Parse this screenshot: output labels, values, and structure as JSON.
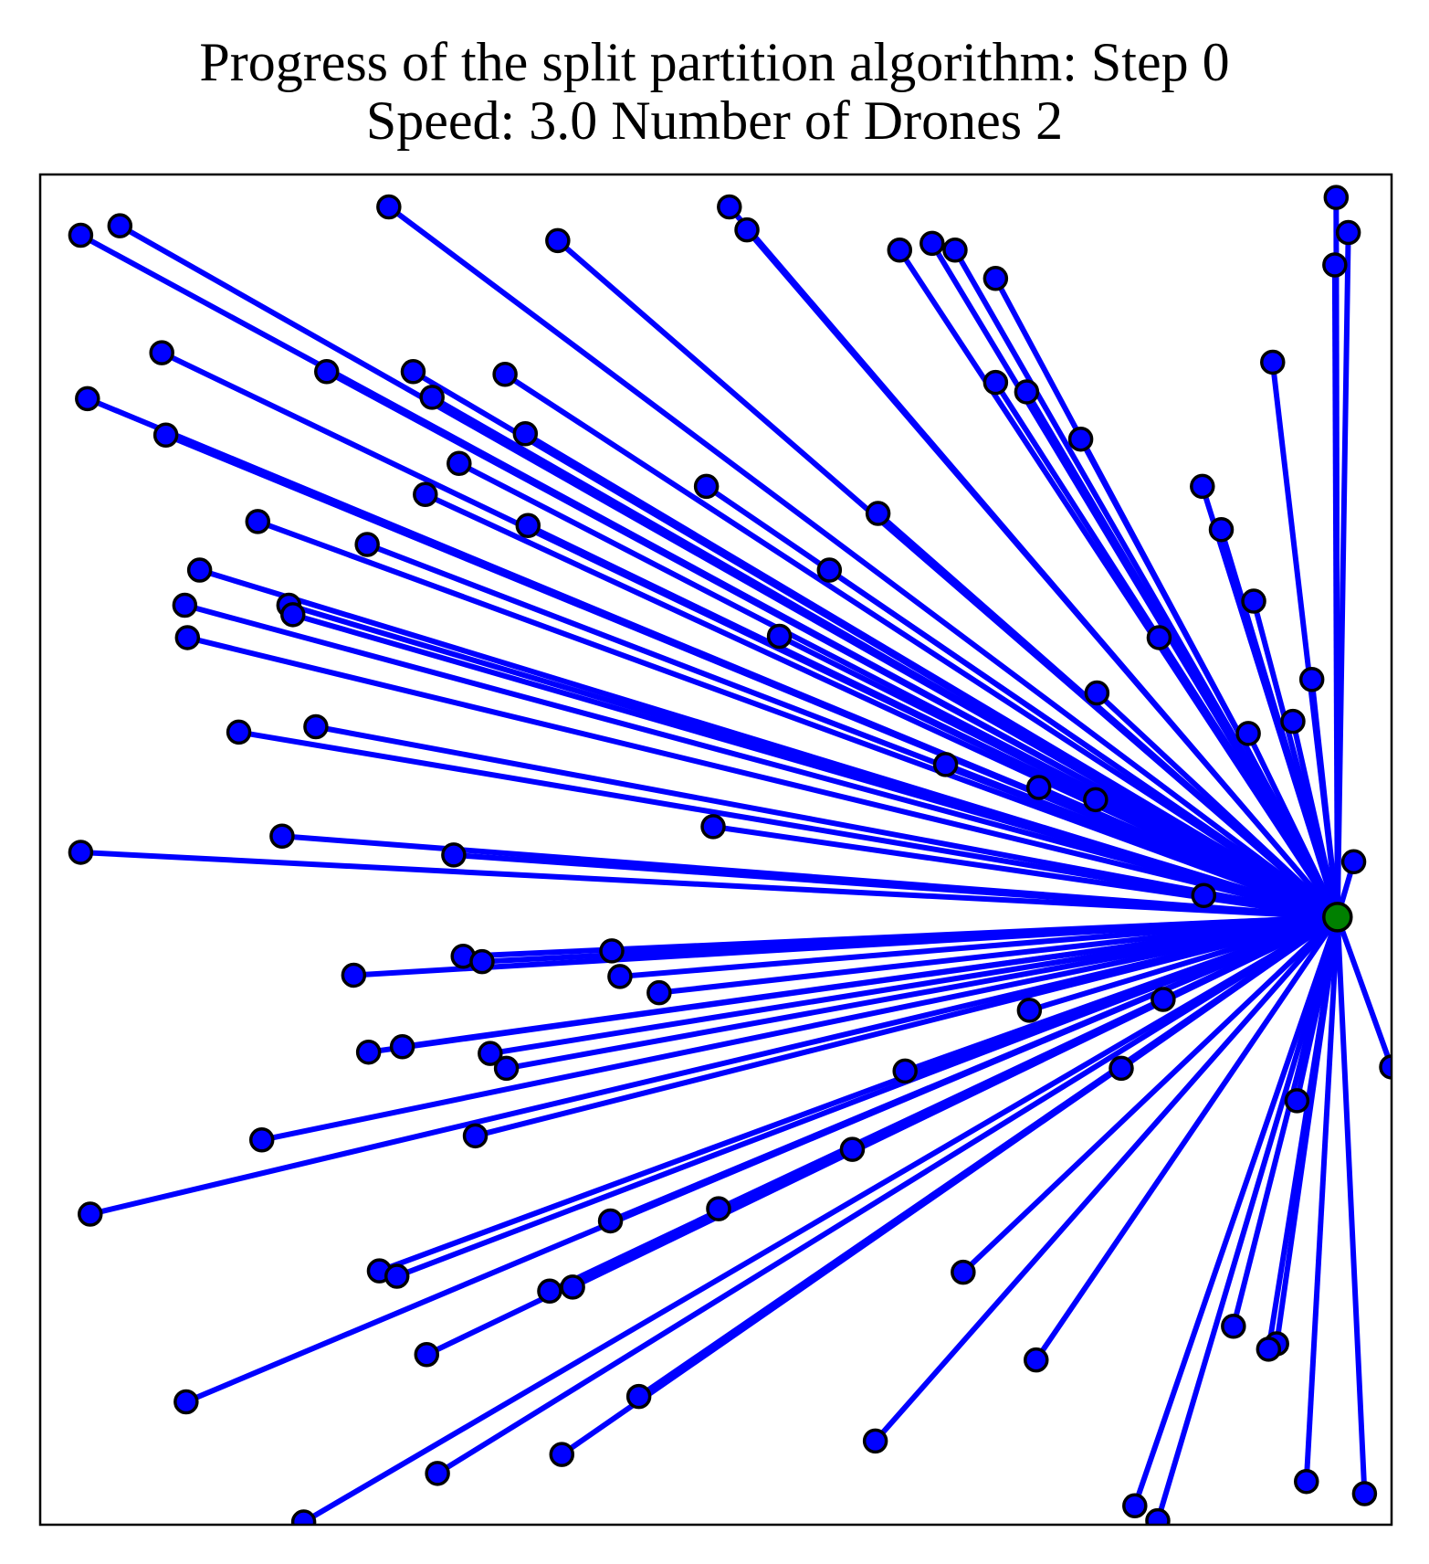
{
  "chart_data": {
    "type": "scatter",
    "title": "Progress of the split partition algorithm: Step 0",
    "subtitle": "Speed: 3.0 Number of Drones 2",
    "xlabel": "",
    "ylabel": "",
    "xlim": [
      0,
      100
    ],
    "ylim": [
      0,
      100
    ],
    "axis_ticks": "none",
    "grid": false,
    "legend": "none",
    "colors": {
      "lines": "#0000ff",
      "points": "#0000ff",
      "point_edge": "#000000",
      "depot": "#008000"
    },
    "depot": [
      96.0,
      45.0
    ],
    "series": [
      {
        "points": [
          [
            3.0,
            95.5
          ],
          [
            5.9,
            96.2
          ],
          [
            25.8,
            97.6
          ],
          [
            38.3,
            95.1
          ],
          [
            51.0,
            97.6
          ],
          [
            52.3,
            95.9
          ],
          [
            63.6,
            94.4
          ],
          [
            66.0,
            94.9
          ],
          [
            67.7,
            94.4
          ],
          [
            70.7,
            92.3
          ],
          [
            95.9,
            98.3
          ],
          [
            96.8,
            95.7
          ],
          [
            95.8,
            93.3
          ],
          [
            91.2,
            86.1
          ],
          [
            9.0,
            86.8
          ],
          [
            27.6,
            85.4
          ],
          [
            21.2,
            85.4
          ],
          [
            34.4,
            85.2
          ],
          [
            3.5,
            83.4
          ],
          [
            29.0,
            83.5
          ],
          [
            70.7,
            84.6
          ],
          [
            73.0,
            83.9
          ],
          [
            9.3,
            80.7
          ],
          [
            35.9,
            80.8
          ],
          [
            77.0,
            80.4
          ],
          [
            31.0,
            78.6
          ],
          [
            49.3,
            76.9
          ],
          [
            62.0,
            74.9
          ],
          [
            16.1,
            74.3
          ],
          [
            28.5,
            76.3
          ],
          [
            24.2,
            72.6
          ],
          [
            36.1,
            74.0
          ],
          [
            86.0,
            76.9
          ],
          [
            87.4,
            73.7
          ],
          [
            11.8,
            70.7
          ],
          [
            58.4,
            70.7
          ],
          [
            18.4,
            68.1
          ],
          [
            18.7,
            67.4
          ],
          [
            10.7,
            68.1
          ],
          [
            54.7,
            65.8
          ],
          [
            89.8,
            68.4
          ],
          [
            82.8,
            65.7
          ],
          [
            94.1,
            62.6
          ],
          [
            10.9,
            65.7
          ],
          [
            78.2,
            61.6
          ],
          [
            92.7,
            59.5
          ],
          [
            89.4,
            58.6
          ],
          [
            14.7,
            58.7
          ],
          [
            20.4,
            59.1
          ],
          [
            67.0,
            56.3
          ],
          [
            73.9,
            54.6
          ],
          [
            78.1,
            53.7
          ],
          [
            49.8,
            51.7
          ],
          [
            17.9,
            51.0
          ],
          [
            30.6,
            49.6
          ],
          [
            3.0,
            49.8
          ],
          [
            97.2,
            49.1
          ],
          [
            86.1,
            46.6
          ],
          [
            31.3,
            42.1
          ],
          [
            32.7,
            41.7
          ],
          [
            42.3,
            42.5
          ],
          [
            42.9,
            40.6
          ],
          [
            45.8,
            39.4
          ],
          [
            23.2,
            40.7
          ],
          [
            83.1,
            38.9
          ],
          [
            73.2,
            38.1
          ],
          [
            26.8,
            35.4
          ],
          [
            24.3,
            35.0
          ],
          [
            33.3,
            34.9
          ],
          [
            34.5,
            33.8
          ],
          [
            100.0,
            33.9
          ],
          [
            80.0,
            33.8
          ],
          [
            64.0,
            33.6
          ],
          [
            93.0,
            31.4
          ],
          [
            16.4,
            28.5
          ],
          [
            32.2,
            28.8
          ],
          [
            60.1,
            27.8
          ],
          [
            3.7,
            23.0
          ],
          [
            50.2,
            23.4
          ],
          [
            42.2,
            22.5
          ],
          [
            25.1,
            18.8
          ],
          [
            26.4,
            18.4
          ],
          [
            68.3,
            18.7
          ],
          [
            37.7,
            17.3
          ],
          [
            39.4,
            17.6
          ],
          [
            88.3,
            14.7
          ],
          [
            91.5,
            13.4
          ],
          [
            90.9,
            13.0
          ],
          [
            73.7,
            12.2
          ],
          [
            28.6,
            12.6
          ],
          [
            10.8,
            9.1
          ],
          [
            44.3,
            9.5
          ],
          [
            61.8,
            6.2
          ],
          [
            38.6,
            5.2
          ],
          [
            29.4,
            3.8
          ],
          [
            93.7,
            3.2
          ],
          [
            98.0,
            2.3
          ],
          [
            81.0,
            1.4
          ],
          [
            82.7,
            0.3
          ],
          [
            19.5,
            0.2
          ]
        ]
      }
    ]
  }
}
